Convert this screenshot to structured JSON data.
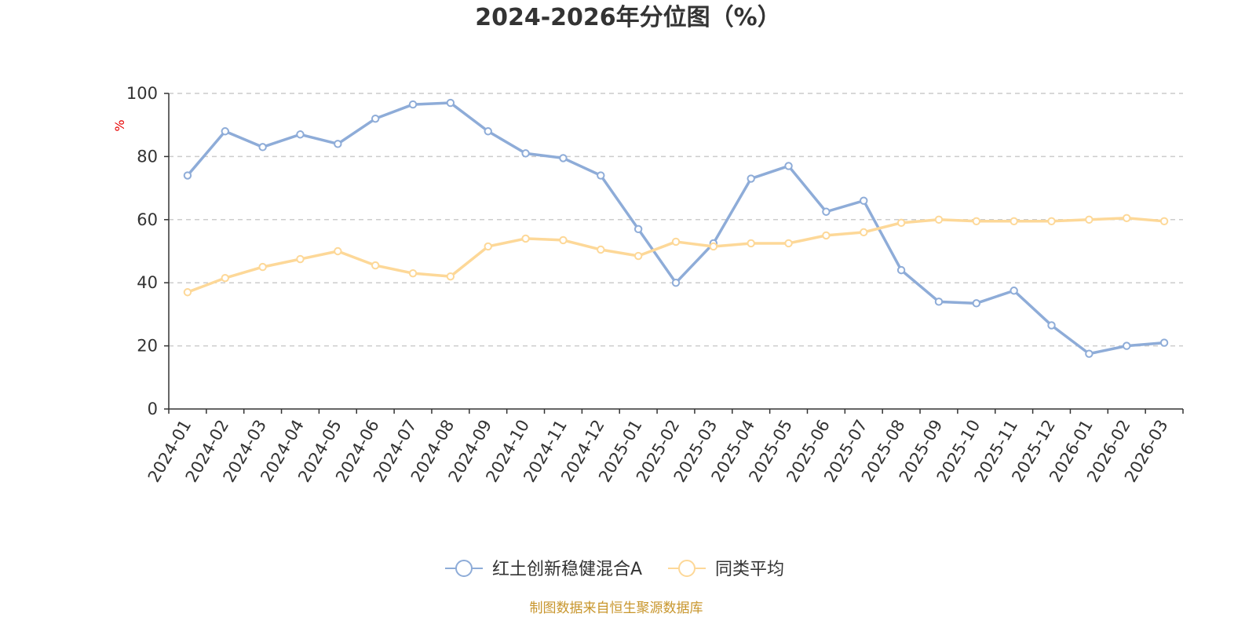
{
  "chart_data": {
    "type": "line",
    "title": "2024-2026年分位图（%）",
    "ylabel": "%",
    "xlabel": "",
    "ylim": [
      0,
      100
    ],
    "yticks": [
      0,
      20,
      40,
      60,
      80,
      100
    ],
    "grid": true,
    "legend_position": "bottom-center",
    "categories": [
      "2024-01",
      "2024-02",
      "2024-03",
      "2024-04",
      "2024-05",
      "2024-06",
      "2024-07",
      "2024-08",
      "2024-09",
      "2024-10",
      "2024-11",
      "2024-12",
      "2025-01",
      "2025-02",
      "2025-03",
      "2025-04",
      "2025-05",
      "2025-06",
      "2025-07",
      "2025-08",
      "2025-09",
      "2025-10",
      "2025-11",
      "2025-12",
      "2026-01",
      "2026-02",
      "2026-03"
    ],
    "series": [
      {
        "name": "红土创新稳健混合A",
        "color": "#8eacd8",
        "values": [
          74,
          88,
          83,
          87,
          84,
          92,
          96.5,
          97,
          88,
          81,
          79.5,
          74,
          57,
          40,
          52.5,
          73,
          77,
          62.5,
          66,
          44,
          34,
          33.5,
          37.5,
          26.5,
          17.5,
          20,
          21
        ]
      },
      {
        "name": "同类平均",
        "color": "#fdd898",
        "values": [
          37,
          41.5,
          45,
          47.5,
          50,
          45.5,
          43,
          42,
          51.5,
          54,
          53.5,
          50.5,
          48.5,
          53,
          51.5,
          52.5,
          52.5,
          55,
          56,
          59,
          60,
          59.5,
          59.5,
          59.5,
          60,
          60.5,
          59.5
        ]
      }
    ]
  },
  "colors": {
    "title": "#333333",
    "axis": "#333333",
    "grid": "#cccccc",
    "unit": "#e60000",
    "source": "#c8962d"
  },
  "source_note": "制图数据来自恒生聚源数据库"
}
